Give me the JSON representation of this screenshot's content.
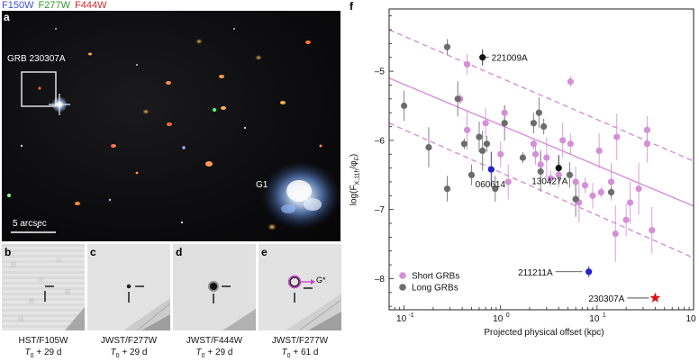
{
  "filters": {
    "f150w": {
      "label": "F150W",
      "color": "#3a4fd0"
    },
    "f277w": {
      "label": "F277W",
      "color": "#2f9a2f"
    },
    "f444w": {
      "label": "F444W",
      "color": "#d02828"
    }
  },
  "panel_a": {
    "letter": "a",
    "grb_label": "GRB 230307A",
    "host_label": "G1",
    "scale_label": "5 arcsec"
  },
  "small_panels": [
    {
      "letter": "b",
      "instrument": "HST/F105W",
      "t0": "T",
      "sub": "0",
      "epoch": "+ 29 d"
    },
    {
      "letter": "c",
      "instrument": "JWST/F277W",
      "t0": "T",
      "sub": "0",
      "epoch": "+ 29 d"
    },
    {
      "letter": "d",
      "instrument": "JWST/F444W",
      "t0": "T",
      "sub": "0",
      "epoch": "+ 29 d"
    },
    {
      "letter": "e",
      "instrument": "JWST/F277W",
      "t0": "T",
      "sub": "0",
      "epoch": "+ 61 d",
      "g_label": "G*"
    }
  ],
  "chart_data": {
    "type": "scatter",
    "panel_letter": "f",
    "xlabel": "Projected physical offset (kpc)",
    "ylabel_main": "log(F",
    "ylabel_sub": "X,11h",
    "ylabel_tail": "/φ",
    "ylabel_sub2": "F",
    "ylabel_close": ")",
    "xscale": "log",
    "xlim": [
      0.07,
      100
    ],
    "ylim": [
      -8.45,
      -4.1
    ],
    "xticks": [
      {
        "v": 0.1,
        "label": "10",
        "sup": "-1"
      },
      {
        "v": 1,
        "label": "10",
        "sup": "0"
      },
      {
        "v": 10,
        "label": "10",
        "sup": "1"
      },
      {
        "v": 100,
        "label": "10",
        "sup": "2"
      }
    ],
    "yticks": [
      -5,
      -6,
      -7,
      -8
    ],
    "ytick_labels": [
      "–5",
      "–6",
      "–7",
      "–8"
    ],
    "legend": {
      "placement": "bottom-left",
      "entries": [
        {
          "label": "Short GRBs",
          "color": "#d48fd8"
        },
        {
          "label": "Long GRBs",
          "color": "#6c6c6c"
        }
      ]
    },
    "fit": {
      "color": "#d48fd8",
      "center": [
        [
          0.07,
          -5.1
        ],
        [
          100,
          -6.95
        ]
      ],
      "upper": [
        [
          0.07,
          -4.4
        ],
        [
          100,
          -6.3
        ]
      ],
      "lower": [
        [
          0.07,
          -5.75
        ],
        [
          100,
          -7.7
        ]
      ]
    },
    "series": [
      {
        "name": "Short GRBs",
        "color": "#d48fd8",
        "points": [
          {
            "x": 0.38,
            "y": -5.4
          },
          {
            "x": 0.45,
            "y": -4.9
          },
          {
            "x": 0.7,
            "y": -5.75
          },
          {
            "x": 0.45,
            "y": -5.85
          },
          {
            "x": 1.1,
            "y": -5.6
          },
          {
            "x": 1.0,
            "y": -6.2
          },
          {
            "x": 1.2,
            "y": -6.6
          },
          {
            "x": 2.2,
            "y": -6.05
          },
          {
            "x": 2.3,
            "y": -6.2
          },
          {
            "x": 2.6,
            "y": -6.35
          },
          {
            "x": 3.0,
            "y": -6.25
          },
          {
            "x": 3.3,
            "y": -6.55
          },
          {
            "x": 4.0,
            "y": -6.5
          },
          {
            "x": 4.4,
            "y": -6.0
          },
          {
            "x": 5.3,
            "y": -5.15
          },
          {
            "x": 5.3,
            "y": -6.05
          },
          {
            "x": 6.0,
            "y": -6.6
          },
          {
            "x": 6.5,
            "y": -6.9
          },
          {
            "x": 7.5,
            "y": -6.65
          },
          {
            "x": 9.0,
            "y": -6.8
          },
          {
            "x": 10.5,
            "y": -6.15
          },
          {
            "x": 11.0,
            "y": -6.75
          },
          {
            "x": 14.0,
            "y": -6.6
          },
          {
            "x": 16.0,
            "y": -5.95
          },
          {
            "x": 15.5,
            "y": -7.35
          },
          {
            "x": 20.0,
            "y": -7.15
          },
          {
            "x": 22.0,
            "y": -6.9
          },
          {
            "x": 27.0,
            "y": -6.7
          },
          {
            "x": 33.0,
            "y": -5.85
          },
          {
            "x": 33.0,
            "y": -6.05
          },
          {
            "x": 37.0,
            "y": -7.3
          }
        ]
      },
      {
        "name": "Long GRBs",
        "color": "#6c6c6c",
        "points": [
          {
            "x": 0.1,
            "y": -5.5
          },
          {
            "x": 0.18,
            "y": -6.1
          },
          {
            "x": 0.28,
            "y": -4.65
          },
          {
            "x": 0.28,
            "y": -6.7
          },
          {
            "x": 0.36,
            "y": -5.4
          },
          {
            "x": 0.42,
            "y": -6.05
          },
          {
            "x": 0.5,
            "y": -6.5
          },
          {
            "x": 0.6,
            "y": -5.95
          },
          {
            "x": 0.65,
            "y": -6.15
          },
          {
            "x": 0.72,
            "y": -6.05
          },
          {
            "x": 0.88,
            "y": -6.7
          },
          {
            "x": 1.1,
            "y": -5.75
          },
          {
            "x": 1.7,
            "y": -6.25
          },
          {
            "x": 2.2,
            "y": -5.75
          },
          {
            "x": 2.5,
            "y": -5.6
          },
          {
            "x": 2.6,
            "y": -6.45
          },
          {
            "x": 2.8,
            "y": -5.8
          },
          {
            "x": 5.2,
            "y": -6.5
          },
          {
            "x": 6.0,
            "y": -6.85
          },
          {
            "x": 14.0,
            "y": -6.75
          }
        ]
      },
      {
        "name": "",
        "color": "#111111",
        "points": [
          {
            "x": 0.65,
            "y": -4.8,
            "label": "221009A"
          },
          {
            "x": 4.0,
            "y": -6.4,
            "label": "130427A"
          }
        ]
      },
      {
        "name": "",
        "color": "#2222cc",
        "points": [
          {
            "x": 0.8,
            "y": -6.42,
            "label": "060614"
          },
          {
            "x": 8.2,
            "y": -7.9,
            "label": "211211A"
          }
        ]
      },
      {
        "name": "",
        "color": "#dd1111",
        "marker": "star",
        "points": [
          {
            "x": 40.0,
            "y": -8.28,
            "label": "230307A"
          }
        ]
      }
    ]
  }
}
